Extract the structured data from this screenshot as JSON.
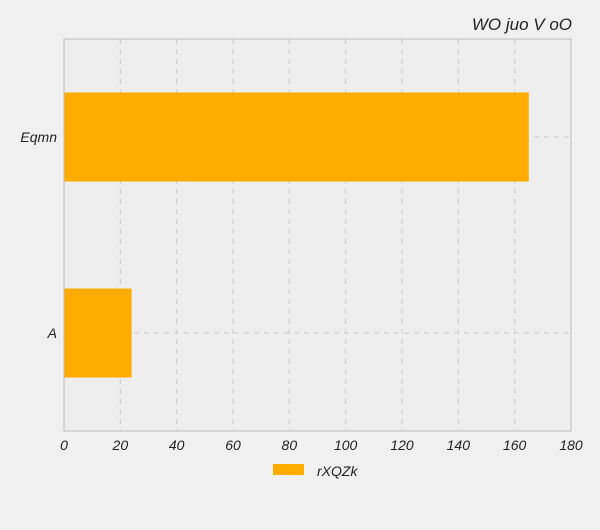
{
  "chart_data": {
    "type": "bar",
    "orientation": "horizontal",
    "title": "WO juo V oO",
    "xlabel": "",
    "ylabel": "",
    "categories": [
      "A",
      "Eqmn"
    ],
    "series": [
      {
        "name": "rXQZk",
        "values": [
          24,
          165
        ]
      }
    ],
    "xlim": [
      0,
      180
    ],
    "xticks": [
      0,
      20,
      40,
      60,
      80,
      100,
      120,
      140,
      160,
      180
    ],
    "grid": true,
    "legend_position": "bottom-center"
  },
  "colors": {
    "bar": "#ffab00",
    "plot_background": "#eeeeee",
    "page_background": "#f0f0f0",
    "grid": "#cccccc",
    "frame": "#bbbbbb",
    "text": "#222222"
  }
}
